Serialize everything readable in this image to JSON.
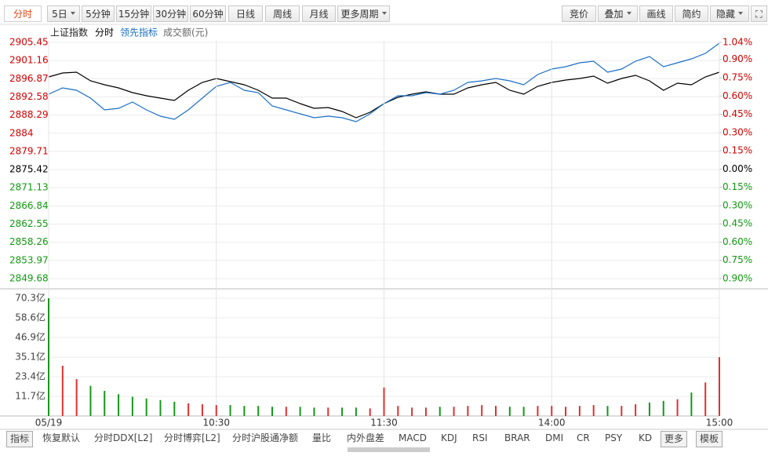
{
  "toolbar": {
    "left": [
      "分时",
      "5日",
      "5分钟",
      "15分钟",
      "30分钟",
      "60分钟",
      "日线",
      "周线",
      "月线",
      "更多周期"
    ],
    "right": [
      "竞价",
      "叠加",
      "画线",
      "简约",
      "隐藏"
    ]
  },
  "chart_data": [
    {
      "type": "line",
      "title": "上证指数",
      "x": [
        0,
        5,
        10,
        15,
        20,
        25,
        30,
        35,
        40,
        45,
        50,
        55,
        60,
        65,
        70,
        75,
        80,
        85,
        90,
        95,
        100,
        105,
        110,
        115,
        120,
        125,
        130,
        135,
        140,
        145,
        150,
        155,
        160,
        165,
        170,
        175,
        180,
        185,
        190,
        195,
        200,
        205,
        210,
        215,
        220,
        225,
        230,
        235,
        240
      ],
      "xlim": [
        0,
        240
      ],
      "ylim": [
        2849.68,
        2905.45
      ],
      "yticks": [
        2905.45,
        2901.16,
        2896.87,
        2892.58,
        2888.29,
        2884.0,
        2879.71,
        2875.42,
        2871.13,
        2866.84,
        2862.55,
        2858.26,
        2853.97,
        2849.68
      ],
      "y2lim": [
        -0.9,
        1.04
      ],
      "y2ticks": [
        {
          "value": 1.04,
          "label": "1.04%"
        },
        {
          "value": 0.9,
          "label": "0.90%"
        },
        {
          "value": 0.75,
          "label": "0.75%"
        },
        {
          "value": 0.6,
          "label": "0.60%"
        },
        {
          "value": 0.45,
          "label": "0.45%"
        },
        {
          "value": 0.3,
          "label": "0.30%"
        },
        {
          "value": 0.15,
          "label": "0.15%"
        },
        {
          "value": 0,
          "label": "0.00%"
        },
        {
          "value": -0.15,
          "label": "0.15%"
        },
        {
          "value": -0.3,
          "label": "0.30%"
        },
        {
          "value": -0.45,
          "label": "0.45%"
        },
        {
          "value": -0.6,
          "label": "0.60%"
        },
        {
          "value": -0.75,
          "label": "0.75%"
        },
        {
          "value": -0.9,
          "label": "0.90%"
        }
      ],
      "grid": true,
      "series": [
        {
          "name": "分时",
          "color": "#000000",
          "values": [
            2897.3,
            2898.22,
            2898.41,
            2896.37,
            2895.44,
            2894.7,
            2893.59,
            2892.85,
            2892.29,
            2891.74,
            2894.15,
            2896.0,
            2896.93,
            2896.18,
            2895.44,
            2894.15,
            2892.29,
            2892.29,
            2891.0,
            2889.88,
            2890.07,
            2889.14,
            2887.66,
            2888.96,
            2891.0,
            2892.48,
            2893.22,
            2893.78,
            2893.22,
            2893.22,
            2894.7,
            2895.44,
            2896.0,
            2894.15,
            2893.22,
            2895.07,
            2896.0,
            2896.56,
            2896.93,
            2897.48,
            2895.81,
            2896.93,
            2897.67,
            2896.37,
            2894.15,
            2895.81,
            2895.44,
            2897.3,
            2898.41
          ]
        },
        {
          "name": "领先指标",
          "color": "#1a6fc4",
          "values": [
            2893.22,
            2894.7,
            2894.15,
            2892.29,
            2889.51,
            2889.88,
            2891.37,
            2889.51,
            2888.03,
            2887.29,
            2889.51,
            2892.29,
            2895.07,
            2896.0,
            2894.15,
            2893.59,
            2890.44,
            2889.51,
            2888.59,
            2887.66,
            2888.03,
            2887.66,
            2886.73,
            2888.59,
            2891.0,
            2892.85,
            2892.85,
            2893.59,
            2893.22,
            2894.15,
            2896.0,
            2896.37,
            2896.93,
            2896.37,
            2895.44,
            2897.85,
            2899.15,
            2899.71,
            2900.63,
            2901.0,
            2898.41,
            2899.15,
            2901.0,
            2902.11,
            2899.71,
            2900.63,
            2901.56,
            2902.86,
            2905.26
          ]
        }
      ]
    },
    {
      "type": "bar",
      "title": "成交额(元)",
      "x": [
        0,
        5,
        10,
        15,
        20,
        25,
        30,
        35,
        40,
        45,
        50,
        55,
        60,
        65,
        70,
        75,
        80,
        85,
        90,
        95,
        100,
        105,
        110,
        115,
        120,
        125,
        130,
        135,
        140,
        145,
        150,
        155,
        160,
        165,
        170,
        175,
        180,
        185,
        190,
        195,
        200,
        205,
        210,
        215,
        220,
        225,
        230,
        235,
        240
      ],
      "xlim": [
        0,
        240
      ],
      "xticks": [
        {
          "value": 0,
          "label": "05/19"
        },
        {
          "value": 60,
          "label": "10:30"
        },
        {
          "value": 120,
          "label": "11:30"
        },
        {
          "value": 180,
          "label": "14:00"
        },
        {
          "value": 240,
          "label": "15:00"
        }
      ],
      "ylim": [
        0,
        70.3
      ],
      "yticks": [
        {
          "value": 70.3,
          "label": "70.3亿"
        },
        {
          "value": 58.6,
          "label": "58.6亿"
        },
        {
          "value": 46.9,
          "label": "46.9亿"
        },
        {
          "value": 35.1,
          "label": "35.1亿"
        },
        {
          "value": 23.4,
          "label": "23.4亿"
        },
        {
          "value": 11.7,
          "label": "11.7亿"
        }
      ],
      "up_color": "#e03030",
      "down_color": "#16971a",
      "values": [
        70.3,
        30,
        22,
        18,
        15,
        13,
        11.5,
        10.5,
        9.5,
        8.5,
        7.5,
        7,
        6.5,
        6.5,
        6,
        6,
        5.5,
        5.5,
        5.5,
        5,
        5,
        5,
        5,
        4.5,
        17,
        6,
        5,
        5,
        5.5,
        5.5,
        6,
        6.5,
        6,
        5.5,
        5.5,
        6,
        6,
        5.5,
        6,
        6.5,
        6,
        6,
        7,
        8,
        9,
        10,
        14,
        20,
        35.1
      ]
    }
  ],
  "tabs": [
    "指标",
    "恢复默认",
    "分时DDX[L2]",
    "分时博弈[L2]",
    "分时沪股通净额",
    "量比",
    "内外盘差",
    "MACD",
    "KDJ",
    "RSI",
    "BRAR",
    "DMI",
    "CR",
    "PSY",
    "KD",
    "更多",
    "模板"
  ]
}
